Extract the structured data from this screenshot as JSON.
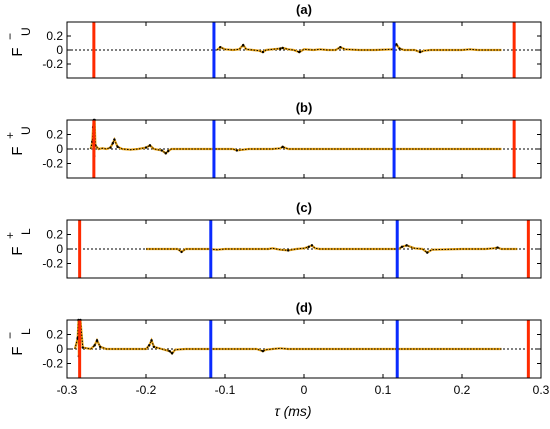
{
  "figure": {
    "xlabel": "τ (ms)"
  },
  "colors": {
    "red_line": "#ff2a00",
    "blue_line": "#0a2bff",
    "signal_dots": "#e8a317",
    "signal_line": "#000000",
    "axis": "#000000",
    "zero_line": "#000000"
  },
  "chart_data": [
    {
      "type": "line",
      "title": "(a)",
      "ylabel": "F",
      "ylabel_sup": "−",
      "ylabel_sub": "U",
      "xlim": [
        -0.3,
        0.3
      ],
      "ylim": [
        -0.4,
        0.4
      ],
      "yticks": [
        0.2,
        0,
        -0.2
      ],
      "ytick_labels": [
        "0.2",
        "0",
        "-0.2"
      ],
      "xticks": [
        -0.3,
        -0.2,
        -0.1,
        0,
        0.1,
        0.2,
        0.3
      ],
      "xtick_labels": [],
      "vlines": [
        {
          "x": -0.266,
          "color": "red"
        },
        {
          "x": -0.114,
          "color": "blue"
        },
        {
          "x": 0.114,
          "color": "blue"
        },
        {
          "x": 0.266,
          "color": "red"
        }
      ],
      "series": [
        {
          "x": [
            -0.11,
            -0.106,
            -0.1,
            -0.09,
            -0.082,
            -0.077,
            -0.073,
            -0.065,
            -0.057,
            -0.052,
            -0.048,
            -0.04,
            -0.03,
            -0.027,
            -0.02,
            -0.013,
            -0.006,
            0,
            0.012,
            0.02,
            0.03,
            0.04,
            0.046,
            0.052,
            0.07,
            0.09,
            0.112,
            0.117,
            0.121,
            0.127,
            0.14,
            0.147,
            0.152,
            0.16,
            0.2,
            0.21,
            0.22,
            0.25
          ],
          "y": [
            0,
            0.04,
            0.01,
            0,
            0.01,
            0.07,
            0.01,
            0,
            -0.01,
            -0.03,
            0,
            0.01,
            0.02,
            0.03,
            0.01,
            0,
            -0.03,
            0.01,
            0,
            0.01,
            0,
            0,
            0.04,
            0.01,
            0,
            0,
            0.01,
            0.08,
            0.02,
            0,
            0,
            -0.03,
            -0.01,
            0,
            0,
            0.01,
            0,
            0
          ]
        }
      ]
    },
    {
      "type": "line",
      "title": "(b)",
      "ylabel": "F",
      "ylabel_sup": "+",
      "ylabel_sub": "U",
      "xlim": [
        -0.3,
        0.3
      ],
      "ylim": [
        -0.4,
        0.4
      ],
      "yticks": [
        0.2,
        0,
        -0.2
      ],
      "ytick_labels": [
        "0.2",
        "0",
        "-0.2"
      ],
      "xticks": [
        -0.3,
        -0.2,
        -0.1,
        0,
        0.1,
        0.2,
        0.3
      ],
      "xtick_labels": [],
      "vlines": [
        {
          "x": -0.266,
          "color": "red"
        },
        {
          "x": -0.114,
          "color": "blue"
        },
        {
          "x": 0.114,
          "color": "blue"
        },
        {
          "x": 0.266,
          "color": "red"
        }
      ],
      "series": [
        {
          "x": [
            -0.27,
            -0.268,
            -0.267,
            -0.266,
            -0.2655,
            -0.265,
            -0.264,
            -0.26,
            -0.255,
            -0.25,
            -0.245,
            -0.242,
            -0.24,
            -0.236,
            -0.23,
            -0.22,
            -0.21,
            -0.2,
            -0.195,
            -0.19,
            -0.18,
            -0.175,
            -0.172,
            -0.168,
            -0.16,
            -0.14,
            -0.12,
            -0.1,
            -0.09,
            -0.085,
            -0.07,
            -0.05,
            -0.04,
            -0.03,
            -0.027,
            -0.02,
            0,
            0.05,
            0.1,
            0.2,
            0.25
          ],
          "y": [
            0,
            0.1,
            0.3,
            0.45,
            -0.1,
            0.4,
            0.05,
            0,
            0.01,
            0,
            0.02,
            0.08,
            0.13,
            0.03,
            0,
            -0.01,
            0,
            0.02,
            0.05,
            0,
            -0.02,
            -0.06,
            -0.03,
            0,
            0,
            0,
            0,
            0,
            0,
            -0.02,
            0,
            0,
            0,
            0.01,
            0.03,
            0,
            0,
            0,
            0,
            0,
            0
          ]
        }
      ]
    },
    {
      "type": "line",
      "title": "(c)",
      "ylabel": "F",
      "ylabel_sup": "+",
      "ylabel_sub": "L",
      "xlim": [
        -0.3,
        0.3
      ],
      "ylim": [
        -0.4,
        0.4
      ],
      "yticks": [
        0.2,
        0,
        -0.2
      ],
      "ytick_labels": [
        "0.2",
        "0",
        "-0.2"
      ],
      "xticks": [
        -0.3,
        -0.2,
        -0.1,
        0,
        0.1,
        0.2,
        0.3
      ],
      "xtick_labels": [],
      "vlines": [
        {
          "x": -0.284,
          "color": "red"
        },
        {
          "x": -0.118,
          "color": "blue"
        },
        {
          "x": 0.118,
          "color": "blue"
        },
        {
          "x": 0.284,
          "color": "red"
        }
      ],
      "series": [
        {
          "x": [
            -0.2,
            -0.16,
            -0.155,
            -0.15,
            -0.12,
            -0.11,
            -0.1,
            -0.09,
            -0.07,
            -0.06,
            -0.045,
            -0.04,
            -0.03,
            -0.02,
            -0.01,
            0,
            0.006,
            0.01,
            0.014,
            0.02,
            0.04,
            0.1,
            0.12,
            0.124,
            0.13,
            0.14,
            0.15,
            0.156,
            0.162,
            0.2,
            0.23,
            0.24,
            0.245,
            0.25,
            0.27
          ],
          "y": [
            0,
            0,
            -0.04,
            0,
            0,
            -0.01,
            0,
            0,
            0,
            0,
            0,
            0.01,
            -0.01,
            -0.02,
            0,
            0.01,
            0.03,
            0.05,
            0.01,
            0,
            0,
            0,
            0,
            0.03,
            0.05,
            0.01,
            0,
            -0.05,
            -0.01,
            0,
            0,
            0.01,
            0.02,
            0,
            0
          ]
        }
      ]
    },
    {
      "type": "line",
      "title": "(d)",
      "ylabel": "F",
      "ylabel_sup": "−",
      "ylabel_sub": "L",
      "xlim": [
        -0.3,
        0.3
      ],
      "ylim": [
        -0.4,
        0.4
      ],
      "yticks": [
        0.2,
        0,
        -0.2
      ],
      "ytick_labels": [
        "0.2",
        "0",
        "-0.2"
      ],
      "xticks": [
        -0.3,
        -0.2,
        -0.1,
        0,
        0.1,
        0.2,
        0.3
      ],
      "xtick_labels": [
        "-0.3",
        "-0.2",
        "-0.1",
        "0",
        "0.1",
        "0.2",
        "0.3"
      ],
      "vlines": [
        {
          "x": -0.284,
          "color": "red"
        },
        {
          "x": -0.118,
          "color": "blue"
        },
        {
          "x": 0.118,
          "color": "blue"
        },
        {
          "x": 0.284,
          "color": "red"
        }
      ],
      "series": [
        {
          "x": [
            -0.29,
            -0.2865,
            -0.2855,
            -0.285,
            -0.2845,
            -0.284,
            -0.283,
            -0.28,
            -0.27,
            -0.265,
            -0.262,
            -0.258,
            -0.25,
            -0.22,
            -0.2,
            -0.196,
            -0.193,
            -0.19,
            -0.18,
            -0.17,
            -0.167,
            -0.163,
            -0.15,
            -0.1,
            -0.06,
            -0.052,
            -0.048,
            -0.04,
            -0.03,
            -0.02,
            0,
            0.05,
            0.1,
            0.2,
            0.25
          ],
          "y": [
            0,
            0.15,
            0.4,
            -0.1,
            0.35,
            0.1,
            0.4,
            0.02,
            0,
            0.05,
            0.12,
            0.03,
            0,
            0,
            0,
            0.05,
            0.12,
            0.03,
            0,
            -0.03,
            -0.06,
            -0.01,
            0,
            0,
            0,
            -0.03,
            -0.01,
            0,
            0.01,
            0,
            0,
            0,
            0,
            0,
            0
          ]
        }
      ]
    }
  ]
}
